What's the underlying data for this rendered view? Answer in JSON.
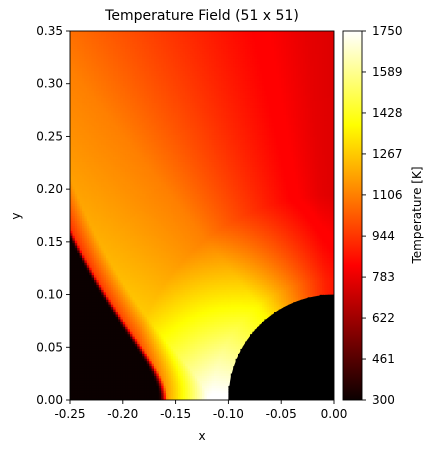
{
  "chart_data": {
    "type": "heatmap",
    "title": "Temperature Field (51 x 51)",
    "xlabel": "x",
    "ylabel": "y",
    "xlim": [
      -0.25,
      0.0
    ],
    "ylim": [
      0.0,
      0.35
    ],
    "x_ticks": [
      "-0.25",
      "-0.20",
      "-0.15",
      "-0.10",
      "-0.05",
      "0.00"
    ],
    "x_tick_values": [
      -0.25,
      -0.2,
      -0.15,
      -0.1,
      -0.05,
      0.0
    ],
    "y_ticks": [
      "0.00",
      "0.05",
      "0.10",
      "0.15",
      "0.20",
      "0.25",
      "0.30",
      "0.35"
    ],
    "y_tick_values": [
      0.0,
      0.05,
      0.1,
      0.15,
      0.2,
      0.25,
      0.3,
      0.35
    ],
    "grid_size": [
      51,
      51
    ],
    "colormap": "hot",
    "colorbar": {
      "label": "Temperature [K]",
      "range": [
        300,
        1750
      ],
      "ticks": [
        "300",
        "461",
        "622",
        "783",
        "944",
        "1106",
        "1267",
        "1428",
        "1589",
        "1750"
      ],
      "tick_values": [
        300,
        461,
        622,
        783,
        944,
        1106,
        1267,
        1428,
        1589,
        1750
      ]
    },
    "body": {
      "shape": "quarter-circle",
      "center": [
        0.0,
        0.0
      ],
      "radius": 0.1,
      "color": "#000000"
    },
    "shock": {
      "standoff_x": -0.162,
      "hot_core_x": -0.115,
      "free_stream_temperature": 300,
      "max_temperature": 1750
    },
    "grid": false
  }
}
